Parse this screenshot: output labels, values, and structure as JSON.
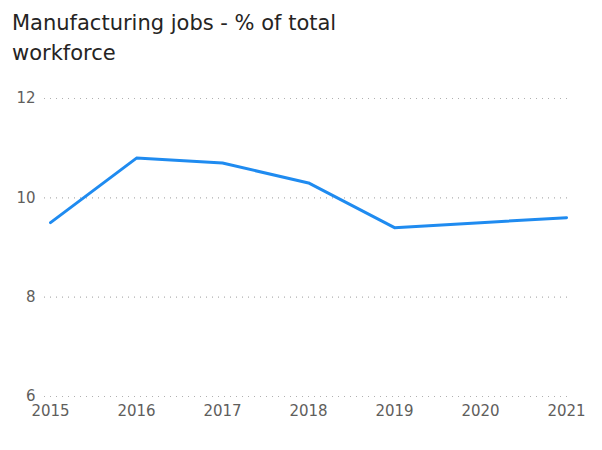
{
  "chart_data": {
    "type": "line",
    "title": "Manufacturing jobs - % of total workforce",
    "categories": [
      "2015",
      "2016",
      "2017",
      "2018",
      "2019",
      "2020",
      "2021"
    ],
    "values": [
      9.5,
      10.8,
      10.7,
      10.3,
      9.4,
      9.5,
      9.6
    ],
    "color": "#1f8bf0",
    "ylim": [
      6,
      12
    ],
    "yticks": [
      6,
      8,
      10,
      12
    ],
    "grid": true
  }
}
